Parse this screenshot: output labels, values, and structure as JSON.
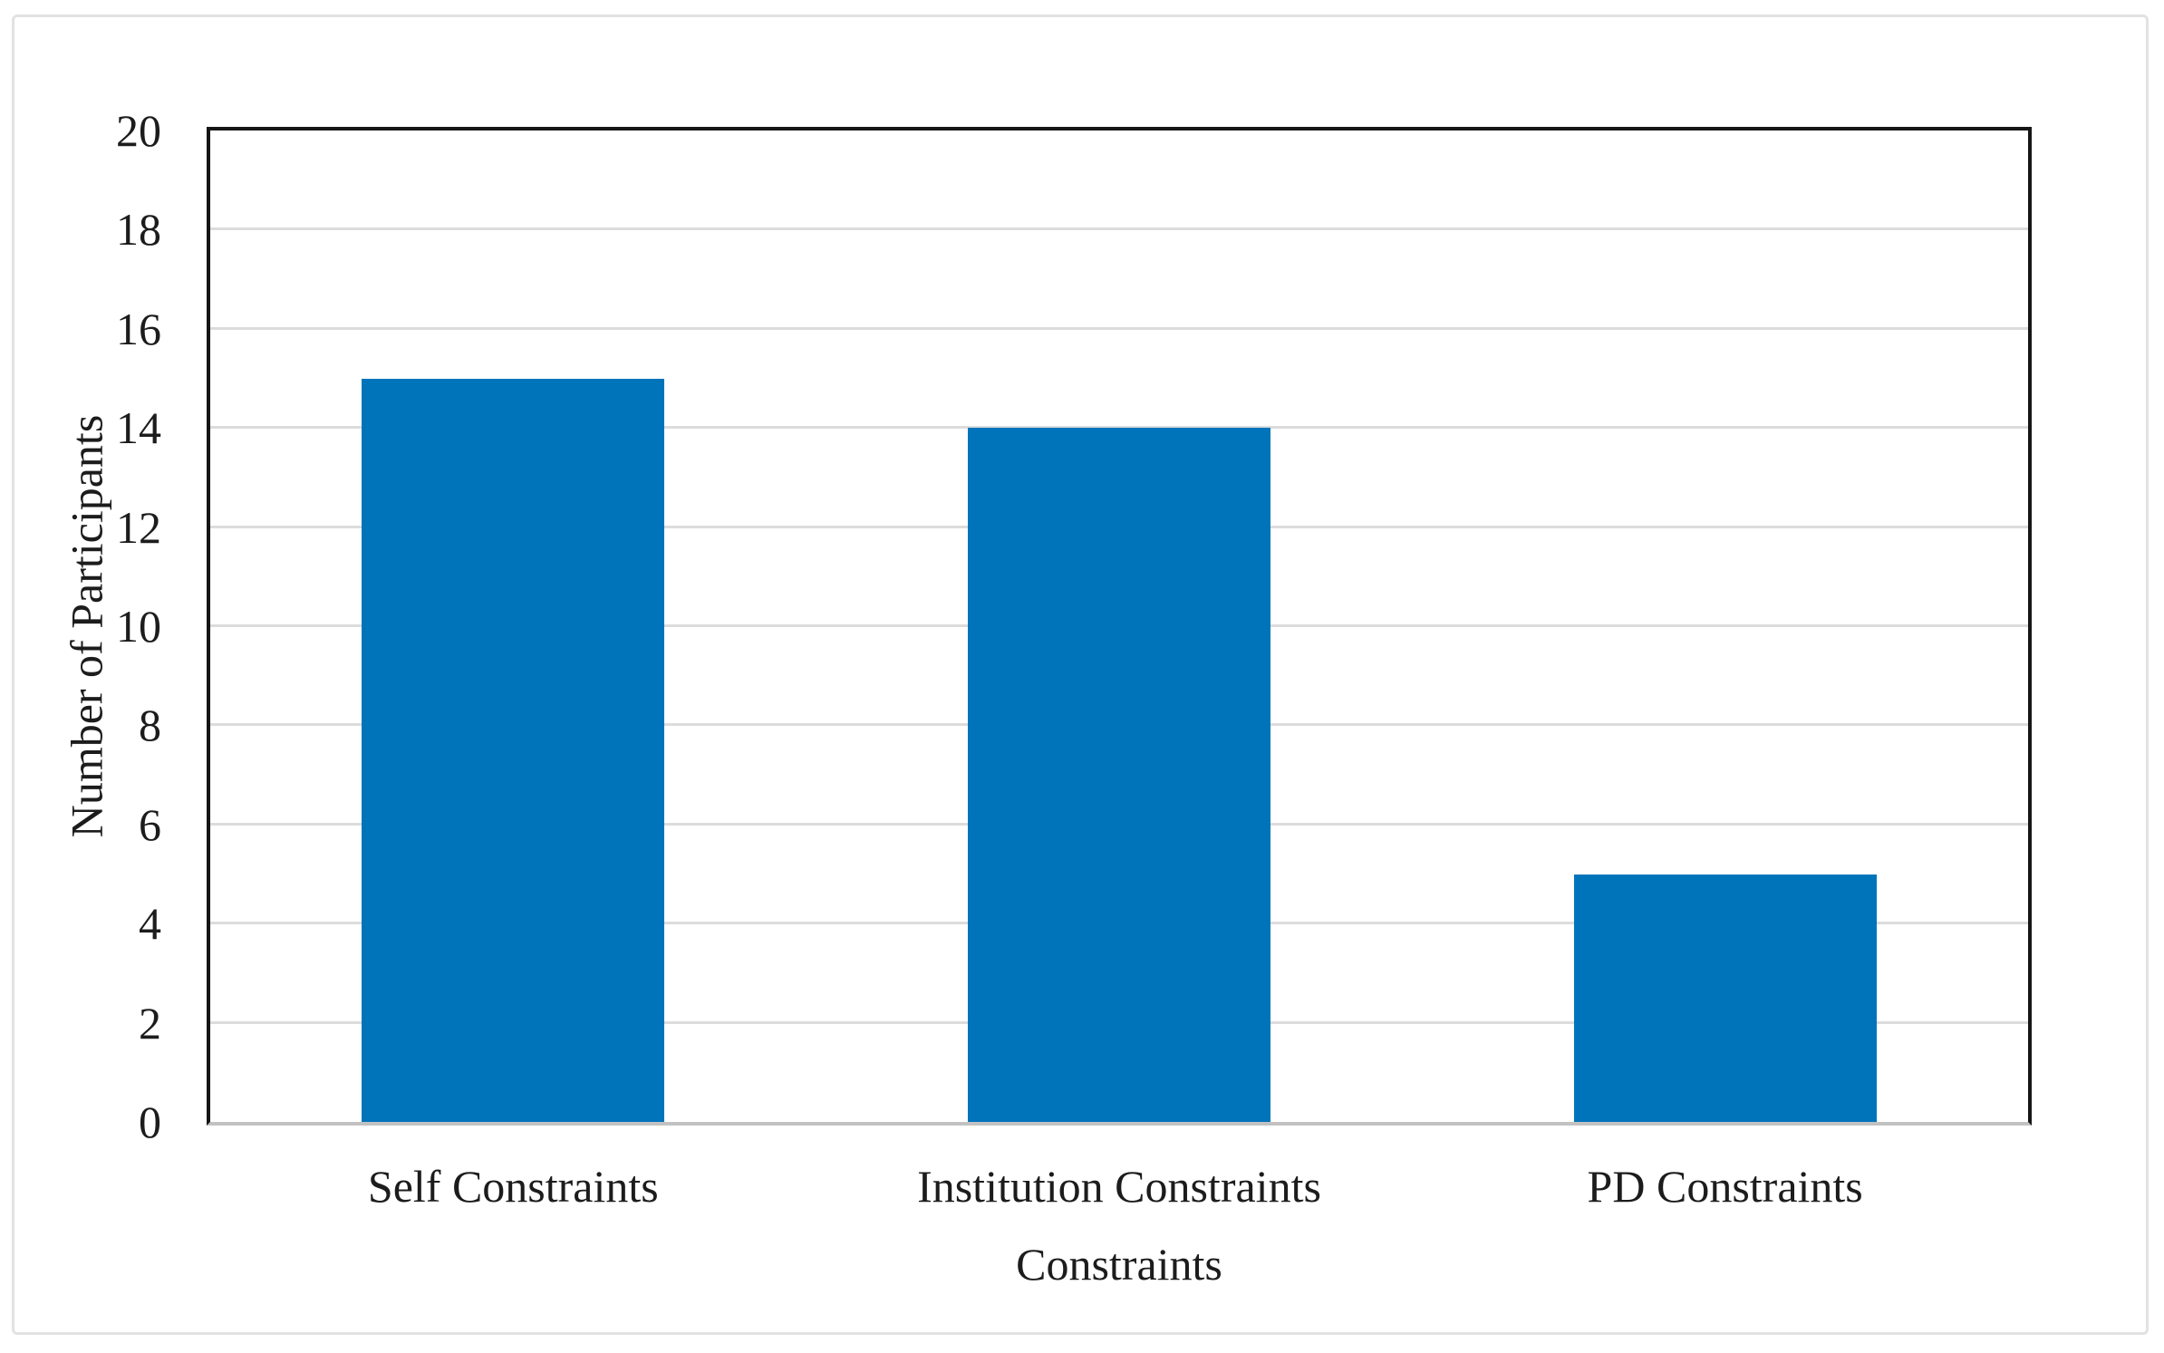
{
  "chart_data": {
    "type": "bar",
    "title": "",
    "categories": [
      "Self Constraints",
      "Institution Constraints",
      "PD Constraints"
    ],
    "values": [
      15,
      14,
      5
    ],
    "xlabel": "Constraints",
    "ylabel": "Number of Participants",
    "ylim": [
      0,
      20
    ],
    "yticks": [
      0,
      2,
      4,
      6,
      8,
      10,
      12,
      14,
      16,
      18,
      20
    ],
    "ytick_step": 2,
    "grid": true,
    "legend": "none",
    "bar_gap_ratio": 0.5,
    "colors": {
      "bar": "#0074BA",
      "gridline": "#dcdcdc",
      "axis_border": "#161616",
      "baseline": "#c2c2c2",
      "text": "#1c1c1c",
      "figure_border": "#e2e2e2",
      "background": "#ffffff"
    }
  }
}
